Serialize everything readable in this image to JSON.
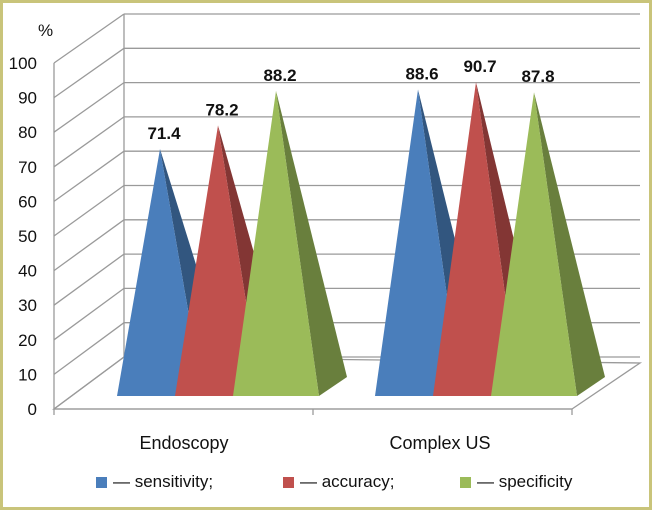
{
  "chart_data": {
    "type": "bar",
    "subtype": "3d-pyramid",
    "ylabel": "%",
    "ylim": [
      0,
      100
    ],
    "yticks": [
      0,
      10,
      20,
      30,
      40,
      50,
      60,
      70,
      80,
      90,
      100
    ],
    "grid": true,
    "categories": [
      "Endoscopy",
      "Complex US"
    ],
    "series": [
      {
        "name": "— sensitivity;",
        "color": "#4a7ebb",
        "values": [
          71.4,
          88.6
        ]
      },
      {
        "name": "— accuracy;",
        "color": "#c0504d",
        "values": [
          78.2,
          90.7
        ]
      },
      {
        "name": "— specificity",
        "color": "#9bbb59",
        "values": [
          88.2,
          87.8
        ]
      }
    ],
    "data_labels": [
      [
        "71.4",
        "88.6"
      ],
      [
        "78.2",
        "90.7"
      ],
      [
        "88.2",
        "87.8"
      ]
    ],
    "legend_position": "bottom"
  },
  "colors": {
    "frame": "#c9c47a",
    "grid": "#9a9a9a",
    "sensitivity_dark": "#2f5482",
    "accuracy_dark": "#8c2f2c",
    "specificity_dark": "#6a8a36"
  }
}
